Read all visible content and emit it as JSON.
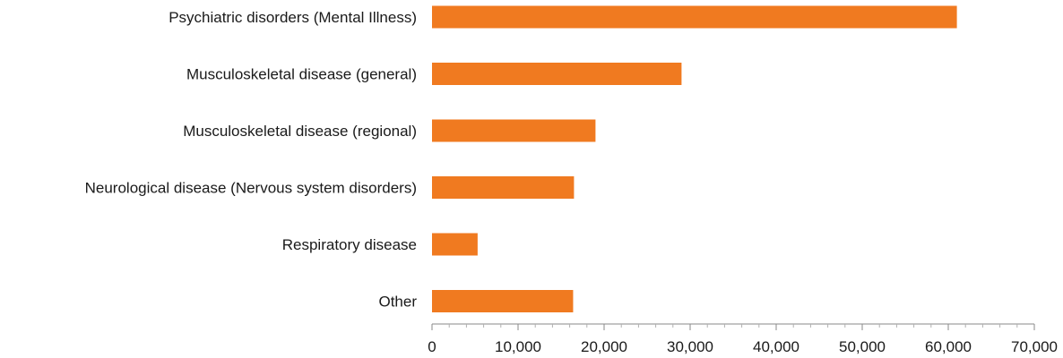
{
  "chart_data": {
    "type": "bar",
    "orientation": "horizontal",
    "categories": [
      "Psychiatric disorders (Mental Illness)",
      "Musculoskeletal disease (general)",
      "Musculoskeletal disease (regional)",
      "Neurological disease (Nervous system disorders)",
      "Respiratory disease",
      "Other"
    ],
    "values": [
      61000,
      29000,
      19000,
      16500,
      5300,
      16400
    ],
    "bar_color": "#f07a20",
    "xlim": [
      0,
      70000
    ],
    "x_ticks": [
      0,
      10000,
      20000,
      30000,
      40000,
      50000,
      60000,
      70000
    ],
    "x_tick_labels": [
      "0",
      "10,000",
      "20,000",
      "30,000",
      "40,000",
      "50,000",
      "60,000",
      "70,000"
    ],
    "minor_tick_step": 2000,
    "grid": false,
    "legend": "none"
  }
}
